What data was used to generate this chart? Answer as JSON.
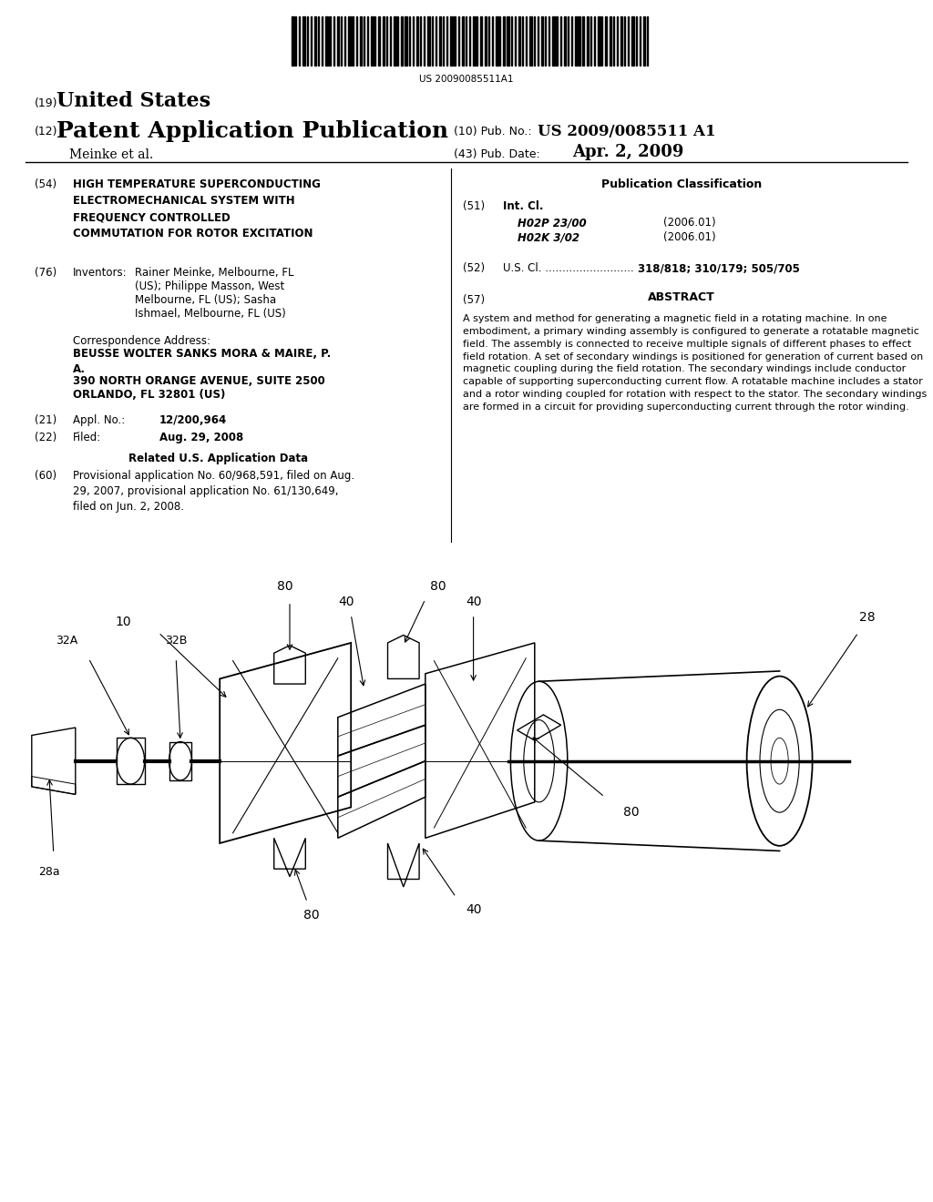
{
  "bg_color": "#ffffff",
  "page_width": 10.24,
  "page_height": 13.2,
  "barcode_text": "US 20090085511A1",
  "title_19": "(19)",
  "title_19_text": "United States",
  "title_12": "(12)",
  "title_12_text": "Patent Application Publication",
  "pub_no_label": "(10) Pub. No.:",
  "pub_no_value": "US 2009/0085511 A1",
  "author_label": "Meinke et al.",
  "pub_date_label": "(43) Pub. Date:",
  "pub_date_value": "Apr. 2, 2009",
  "section54_num": "(54)",
  "section54_title_bold": "HIGH TEMPERATURE SUPERCONDUCTING\nELECTROMECHANICAL SYSTEM WITH\nFREQUENCY CONTROLLED\nCOMMUTATION FOR ROTOR EXCITATION",
  "section76_num": "(76)",
  "section76_label": "Inventors:",
  "section76_text": "Rainer Meinke, Melbourne, FL\n(US); Philippe Masson, West\nMelbourne, FL (US); Sasha\nIshmael, Melbourne, FL (US)",
  "corr_label": "Correspondence Address:",
  "corr_name": "BEUSSE WOLTER SANKS MORA & MAIRE, P.\nA.",
  "corr_addr1": "390 NORTH ORANGE AVENUE, SUITE 2500",
  "corr_addr2": "ORLANDO, FL 32801 (US)",
  "section21_num": "(21)",
  "section21_label": "Appl. No.:",
  "section21_value": "12/200,964",
  "section22_num": "(22)",
  "section22_label": "Filed:",
  "section22_value": "Aug. 29, 2008",
  "related_header": "Related U.S. Application Data",
  "section60_num": "(60)",
  "section60_text": "Provisional application No. 60/968,591, filed on Aug.\n29, 2007, provisional application No. 61/130,649,\nfiled on Jun. 2, 2008.",
  "pub_class_header": "Publication Classification",
  "section51_num": "(51)",
  "section51_label": "Int. Cl.",
  "section51_class1": "H02P 23/00",
  "section51_year1": "(2006.01)",
  "section51_class2": "H02K 3/02",
  "section51_year2": "(2006.01)",
  "section52_num": "(52)",
  "section52_label": "U.S. Cl. ..........................",
  "section52_value": "318/818; 310/179; 505/705",
  "section57_num": "(57)",
  "section57_header": "ABSTRACT",
  "abstract_text": "A system and method for generating a magnetic field in a rotating machine. In one embodiment, a primary winding assembly is configured to generate a rotatable magnetic field. The assembly is connected to receive multiple signals of different phases to effect field rotation. A set of secondary windings is positioned for generation of current based on magnetic coupling during the field rotation. The secondary windings include conductor capable of supporting superconducting current flow. A rotatable machine includes a stator and a rotor winding coupled for rotation with respect to the stator. The secondary windings are formed in a circuit for providing superconducting current through the rotor winding."
}
